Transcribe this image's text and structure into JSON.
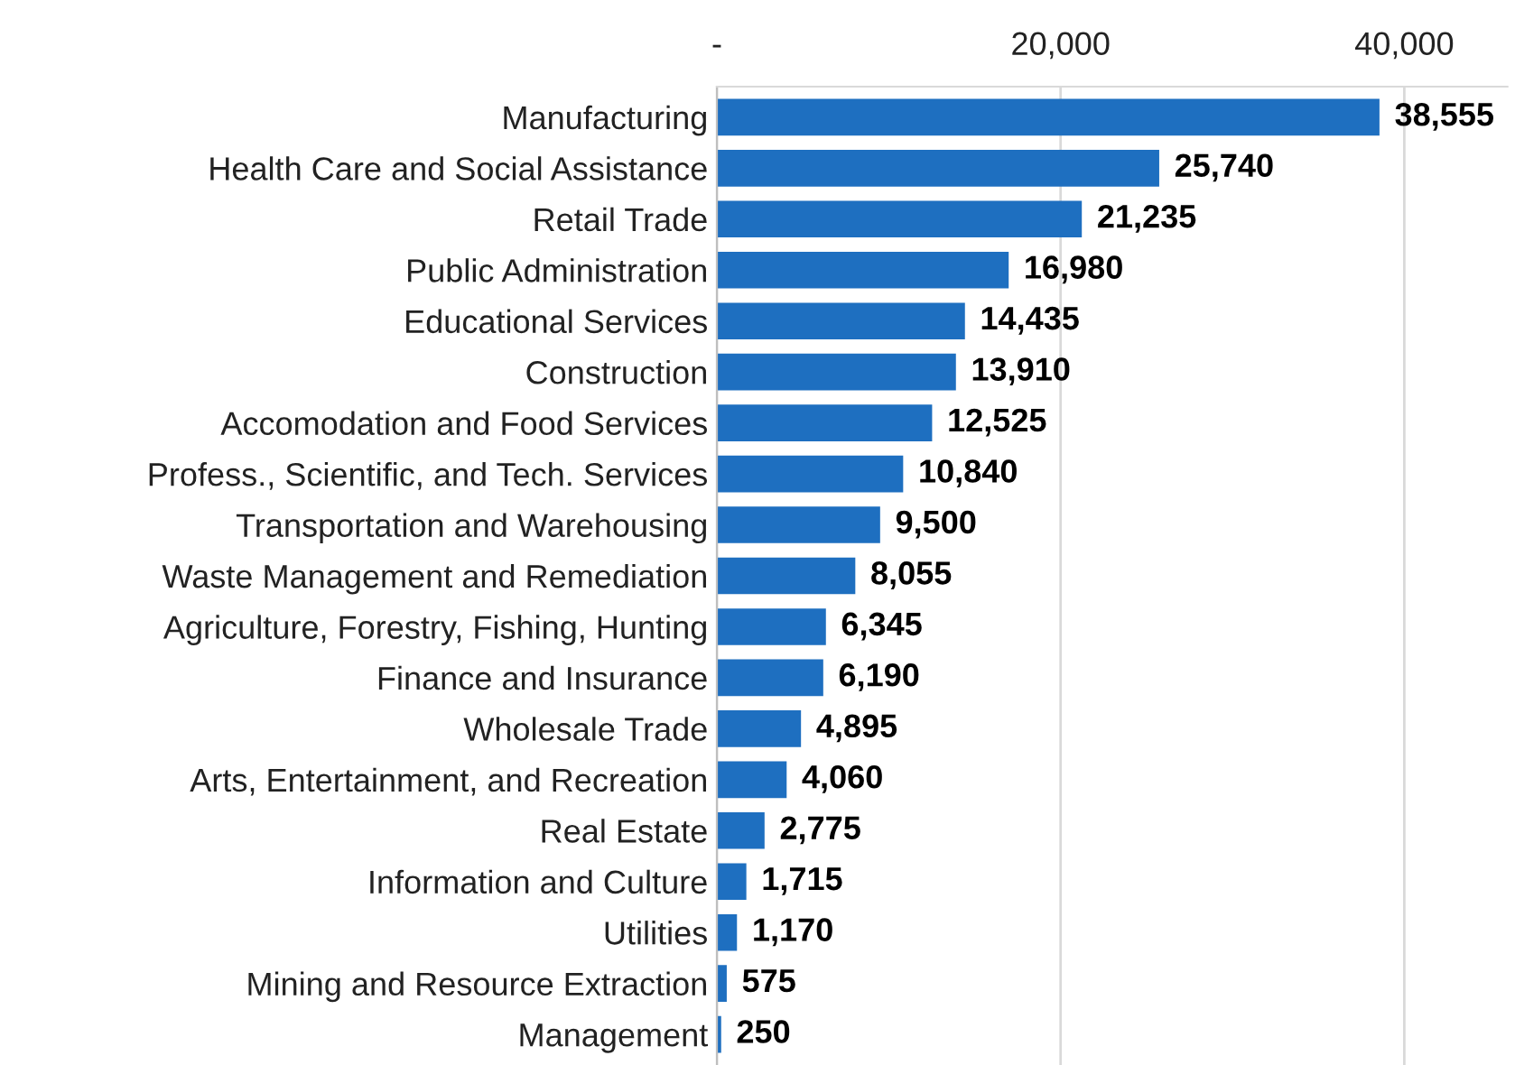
{
  "chart_data": {
    "type": "bar",
    "orientation": "horizontal",
    "categories": [
      "Manufacturing",
      "Health Care and Social Assistance",
      "Retail Trade",
      "Public Administration",
      "Educational Services",
      "Construction",
      "Accomodation and Food Services",
      "Profess., Scientific, and Tech. Services",
      "Transportation and Warehousing",
      "Waste Management and Remediation",
      "Agriculture, Forestry, Fishing, Hunting",
      "Finance and Insurance",
      "Wholesale Trade",
      "Arts, Entertainment, and Recreation",
      "Real Estate",
      "Information and Culture",
      "Utilities",
      "Mining and Resource Extraction",
      "Management"
    ],
    "values": [
      38555,
      25740,
      21235,
      16980,
      14435,
      13910,
      12525,
      10840,
      9500,
      8055,
      6345,
      6190,
      4895,
      4060,
      2775,
      1715,
      1170,
      575,
      250
    ],
    "value_labels": [
      "38,555",
      "25,740",
      "21,235",
      "16,980",
      "14,435",
      "13,910",
      "12,525",
      "10,840",
      "9,500",
      "8,055",
      "6,345",
      "6,190",
      "4,895",
      "4,060",
      "2,775",
      "1,715",
      "1,170",
      "575",
      "250"
    ],
    "color": "#1e6fc0",
    "xlim": [
      0,
      46000
    ],
    "xticks": [
      {
        "value": 0,
        "label": "-"
      },
      {
        "value": 20000,
        "label": "20,000"
      },
      {
        "value": 40000,
        "label": "40,000"
      }
    ],
    "grid": "x",
    "legend": false
  }
}
